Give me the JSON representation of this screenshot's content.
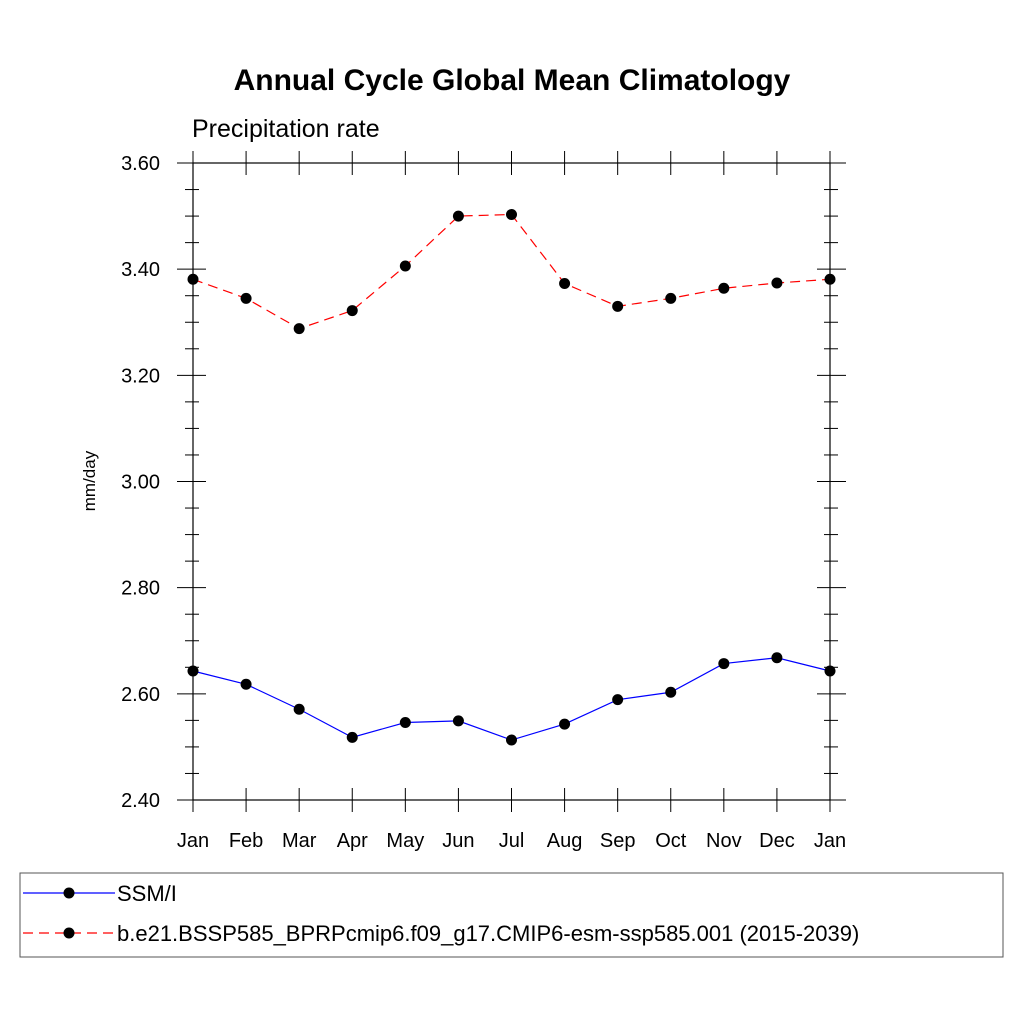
{
  "chart_data": {
    "type": "line",
    "title": "Annual Cycle Global Mean Climatology",
    "subtitle": "Precipitation rate",
    "xlabel": "",
    "ylabel": "mm/day",
    "categories": [
      "Jan",
      "Feb",
      "Mar",
      "Apr",
      "May",
      "Jun",
      "Jul",
      "Aug",
      "Sep",
      "Oct",
      "Nov",
      "Dec",
      "Jan"
    ],
    "ylim": [
      2.4,
      3.6
    ],
    "yticks": [
      "2.40",
      "2.60",
      "2.80",
      "3.00",
      "3.20",
      "3.40",
      "3.60"
    ],
    "grid": false,
    "legend_position": "bottom",
    "series": [
      {
        "name": "SSM/I",
        "color": "#0000ff",
        "dash": "solid",
        "marker": "filled-circle",
        "values": [
          2.643,
          2.618,
          2.571,
          2.518,
          2.546,
          2.549,
          2.513,
          2.543,
          2.589,
          2.603,
          2.657,
          2.668,
          2.643
        ]
      },
      {
        "name": "b.e21.BSSP585_BPRPcmip6.f09_g17.CMIP6-esm-ssp585.001 (2015-2039)",
        "color": "#ff0000",
        "dash": "dashed",
        "marker": "filled-circle",
        "values": [
          3.381,
          3.345,
          3.288,
          3.322,
          3.406,
          3.5,
          3.503,
          3.373,
          3.33,
          3.345,
          3.364,
          3.374,
          3.381
        ]
      }
    ]
  }
}
